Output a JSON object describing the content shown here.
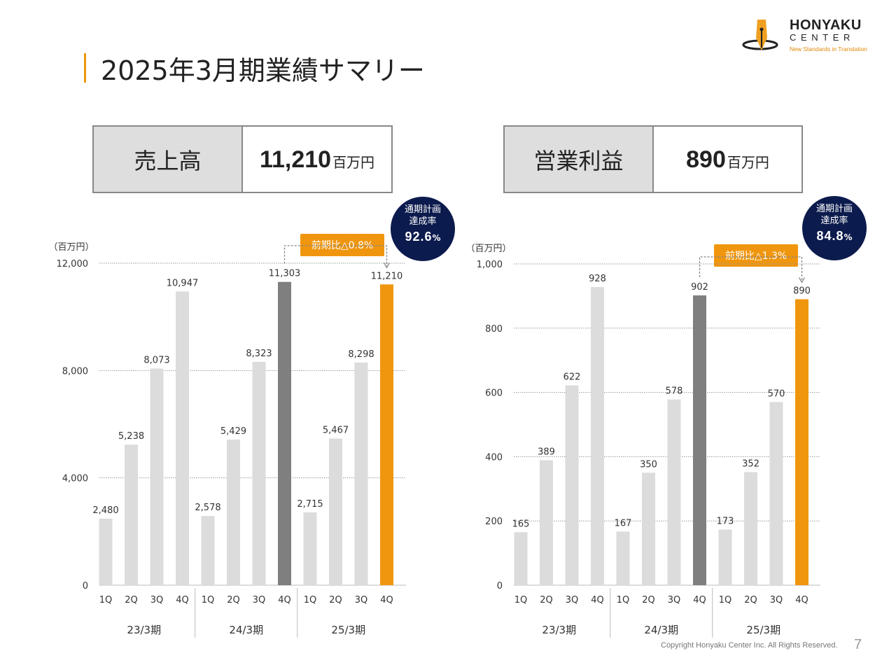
{
  "page": {
    "title": "2025年3月期業績サマリー",
    "accent_color": "#f0960e",
    "copyright": "Copyright Honyaku Center Inc. All Rights Reserved.",
    "page_number": "7"
  },
  "logo": {
    "name": "HONYAKU",
    "sub": "CENTER",
    "tagline": "New Standards in Translation"
  },
  "kpis": [
    {
      "label": "売上高",
      "value": "11,210",
      "unit": "百万円"
    },
    {
      "label": "営業利益",
      "value": "890",
      "unit": "百万円"
    }
  ],
  "badges": {
    "sales": {
      "rate_label_1": "通期計画",
      "rate_label_2": "達成率",
      "rate_value": "92.6",
      "rate_pct": "%",
      "yoy": "前期比△0.8%"
    },
    "profit": {
      "rate_label_1": "通期計画",
      "rate_label_2": "達成率",
      "rate_value": "84.8",
      "rate_pct": "%",
      "yoy": "前期比△1.3%"
    }
  },
  "colors": {
    "bar_default": "#dcdcdc",
    "bar_prev_q4": "#7f7f7f",
    "bar_current_q4": "#f0960e",
    "circle": "#0c1b4d"
  },
  "chart_data": [
    {
      "type": "bar",
      "unit_label": "（百万円）",
      "ylim": [
        0,
        12000
      ],
      "yticks": [
        0,
        4000,
        8000,
        12000
      ],
      "ytick_labels": [
        "0",
        "4,000",
        "8,000",
        "12,000"
      ],
      "grid": true,
      "groups": [
        {
          "label": "23/3期",
          "categories": [
            "1Q",
            "2Q",
            "3Q",
            "4Q"
          ],
          "values": [
            2480,
            5238,
            8073,
            10947
          ],
          "labels": [
            "2,480",
            "5,238",
            "8,073",
            "10,947"
          ]
        },
        {
          "label": "24/3期",
          "categories": [
            "1Q",
            "2Q",
            "3Q",
            "4Q"
          ],
          "values": [
            2578,
            5429,
            8323,
            11303
          ],
          "labels": [
            "2,578",
            "5,429",
            "8,323",
            "11,303"
          ]
        },
        {
          "label": "25/3期",
          "categories": [
            "1Q",
            "2Q",
            "3Q",
            "4Q"
          ],
          "values": [
            2715,
            5467,
            8298,
            11210
          ],
          "labels": [
            "2,715",
            "5,467",
            "8,298",
            "11,210"
          ]
        }
      ]
    },
    {
      "type": "bar",
      "unit_label": "（百万円）",
      "ylim": [
        0,
        1000
      ],
      "yticks": [
        0,
        200,
        400,
        600,
        800,
        1000
      ],
      "ytick_labels": [
        "0",
        "200",
        "400",
        "600",
        "800",
        "1,000"
      ],
      "grid": true,
      "groups": [
        {
          "label": "23/3期",
          "categories": [
            "1Q",
            "2Q",
            "3Q",
            "4Q"
          ],
          "values": [
            165,
            389,
            622,
            928
          ],
          "labels": [
            "165",
            "389",
            "622",
            "928"
          ]
        },
        {
          "label": "24/3期",
          "categories": [
            "1Q",
            "2Q",
            "3Q",
            "4Q"
          ],
          "values": [
            167,
            350,
            578,
            902
          ],
          "labels": [
            "167",
            "350",
            "578",
            "902"
          ]
        },
        {
          "label": "25/3期",
          "categories": [
            "1Q",
            "2Q",
            "3Q",
            "4Q"
          ],
          "values": [
            173,
            352,
            570,
            890
          ],
          "labels": [
            "173",
            "352",
            "570",
            "890"
          ]
        }
      ]
    }
  ]
}
